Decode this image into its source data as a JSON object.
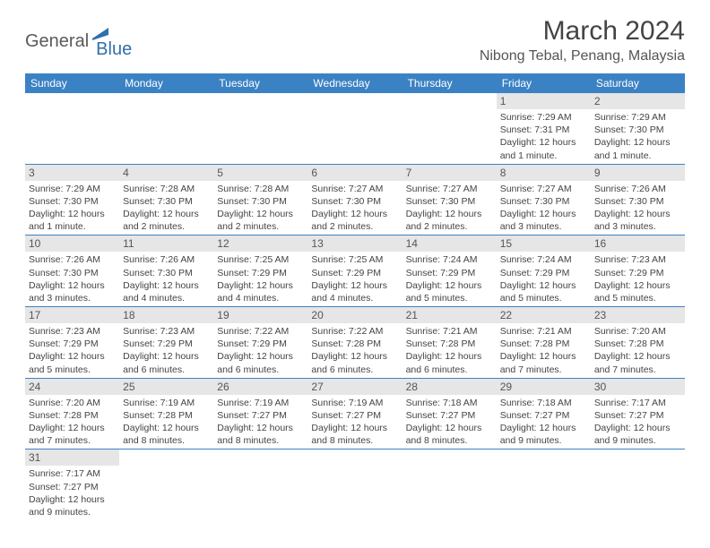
{
  "logo": {
    "part1": "General",
    "part2": "Blue"
  },
  "title": "March 2024",
  "location": "Nibong Tebal, Penang, Malaysia",
  "colors": {
    "header_bg": "#3b82c4",
    "header_text": "#ffffff",
    "daynum_bg": "#e6e6e6",
    "row_border": "#3b82c4",
    "logo_gray": "#5a5a5a",
    "logo_blue": "#2f6fad"
  },
  "weekdays": [
    "Sunday",
    "Monday",
    "Tuesday",
    "Wednesday",
    "Thursday",
    "Friday",
    "Saturday"
  ],
  "weeks": [
    [
      null,
      null,
      null,
      null,
      null,
      {
        "n": "1",
        "sunrise": "Sunrise: 7:29 AM",
        "sunset": "Sunset: 7:31 PM",
        "daylight": "Daylight: 12 hours and 1 minute."
      },
      {
        "n": "2",
        "sunrise": "Sunrise: 7:29 AM",
        "sunset": "Sunset: 7:30 PM",
        "daylight": "Daylight: 12 hours and 1 minute."
      }
    ],
    [
      {
        "n": "3",
        "sunrise": "Sunrise: 7:29 AM",
        "sunset": "Sunset: 7:30 PM",
        "daylight": "Daylight: 12 hours and 1 minute."
      },
      {
        "n": "4",
        "sunrise": "Sunrise: 7:28 AM",
        "sunset": "Sunset: 7:30 PM",
        "daylight": "Daylight: 12 hours and 2 minutes."
      },
      {
        "n": "5",
        "sunrise": "Sunrise: 7:28 AM",
        "sunset": "Sunset: 7:30 PM",
        "daylight": "Daylight: 12 hours and 2 minutes."
      },
      {
        "n": "6",
        "sunrise": "Sunrise: 7:27 AM",
        "sunset": "Sunset: 7:30 PM",
        "daylight": "Daylight: 12 hours and 2 minutes."
      },
      {
        "n": "7",
        "sunrise": "Sunrise: 7:27 AM",
        "sunset": "Sunset: 7:30 PM",
        "daylight": "Daylight: 12 hours and 2 minutes."
      },
      {
        "n": "8",
        "sunrise": "Sunrise: 7:27 AM",
        "sunset": "Sunset: 7:30 PM",
        "daylight": "Daylight: 12 hours and 3 minutes."
      },
      {
        "n": "9",
        "sunrise": "Sunrise: 7:26 AM",
        "sunset": "Sunset: 7:30 PM",
        "daylight": "Daylight: 12 hours and 3 minutes."
      }
    ],
    [
      {
        "n": "10",
        "sunrise": "Sunrise: 7:26 AM",
        "sunset": "Sunset: 7:30 PM",
        "daylight": "Daylight: 12 hours and 3 minutes."
      },
      {
        "n": "11",
        "sunrise": "Sunrise: 7:26 AM",
        "sunset": "Sunset: 7:30 PM",
        "daylight": "Daylight: 12 hours and 4 minutes."
      },
      {
        "n": "12",
        "sunrise": "Sunrise: 7:25 AM",
        "sunset": "Sunset: 7:29 PM",
        "daylight": "Daylight: 12 hours and 4 minutes."
      },
      {
        "n": "13",
        "sunrise": "Sunrise: 7:25 AM",
        "sunset": "Sunset: 7:29 PM",
        "daylight": "Daylight: 12 hours and 4 minutes."
      },
      {
        "n": "14",
        "sunrise": "Sunrise: 7:24 AM",
        "sunset": "Sunset: 7:29 PM",
        "daylight": "Daylight: 12 hours and 5 minutes."
      },
      {
        "n": "15",
        "sunrise": "Sunrise: 7:24 AM",
        "sunset": "Sunset: 7:29 PM",
        "daylight": "Daylight: 12 hours and 5 minutes."
      },
      {
        "n": "16",
        "sunrise": "Sunrise: 7:23 AM",
        "sunset": "Sunset: 7:29 PM",
        "daylight": "Daylight: 12 hours and 5 minutes."
      }
    ],
    [
      {
        "n": "17",
        "sunrise": "Sunrise: 7:23 AM",
        "sunset": "Sunset: 7:29 PM",
        "daylight": "Daylight: 12 hours and 5 minutes."
      },
      {
        "n": "18",
        "sunrise": "Sunrise: 7:23 AM",
        "sunset": "Sunset: 7:29 PM",
        "daylight": "Daylight: 12 hours and 6 minutes."
      },
      {
        "n": "19",
        "sunrise": "Sunrise: 7:22 AM",
        "sunset": "Sunset: 7:29 PM",
        "daylight": "Daylight: 12 hours and 6 minutes."
      },
      {
        "n": "20",
        "sunrise": "Sunrise: 7:22 AM",
        "sunset": "Sunset: 7:28 PM",
        "daylight": "Daylight: 12 hours and 6 minutes."
      },
      {
        "n": "21",
        "sunrise": "Sunrise: 7:21 AM",
        "sunset": "Sunset: 7:28 PM",
        "daylight": "Daylight: 12 hours and 6 minutes."
      },
      {
        "n": "22",
        "sunrise": "Sunrise: 7:21 AM",
        "sunset": "Sunset: 7:28 PM",
        "daylight": "Daylight: 12 hours and 7 minutes."
      },
      {
        "n": "23",
        "sunrise": "Sunrise: 7:20 AM",
        "sunset": "Sunset: 7:28 PM",
        "daylight": "Daylight: 12 hours and 7 minutes."
      }
    ],
    [
      {
        "n": "24",
        "sunrise": "Sunrise: 7:20 AM",
        "sunset": "Sunset: 7:28 PM",
        "daylight": "Daylight: 12 hours and 7 minutes."
      },
      {
        "n": "25",
        "sunrise": "Sunrise: 7:19 AM",
        "sunset": "Sunset: 7:28 PM",
        "daylight": "Daylight: 12 hours and 8 minutes."
      },
      {
        "n": "26",
        "sunrise": "Sunrise: 7:19 AM",
        "sunset": "Sunset: 7:27 PM",
        "daylight": "Daylight: 12 hours and 8 minutes."
      },
      {
        "n": "27",
        "sunrise": "Sunrise: 7:19 AM",
        "sunset": "Sunset: 7:27 PM",
        "daylight": "Daylight: 12 hours and 8 minutes."
      },
      {
        "n": "28",
        "sunrise": "Sunrise: 7:18 AM",
        "sunset": "Sunset: 7:27 PM",
        "daylight": "Daylight: 12 hours and 8 minutes."
      },
      {
        "n": "29",
        "sunrise": "Sunrise: 7:18 AM",
        "sunset": "Sunset: 7:27 PM",
        "daylight": "Daylight: 12 hours and 9 minutes."
      },
      {
        "n": "30",
        "sunrise": "Sunrise: 7:17 AM",
        "sunset": "Sunset: 7:27 PM",
        "daylight": "Daylight: 12 hours and 9 minutes."
      }
    ],
    [
      {
        "n": "31",
        "sunrise": "Sunrise: 7:17 AM",
        "sunset": "Sunset: 7:27 PM",
        "daylight": "Daylight: 12 hours and 9 minutes."
      },
      null,
      null,
      null,
      null,
      null,
      null
    ]
  ]
}
